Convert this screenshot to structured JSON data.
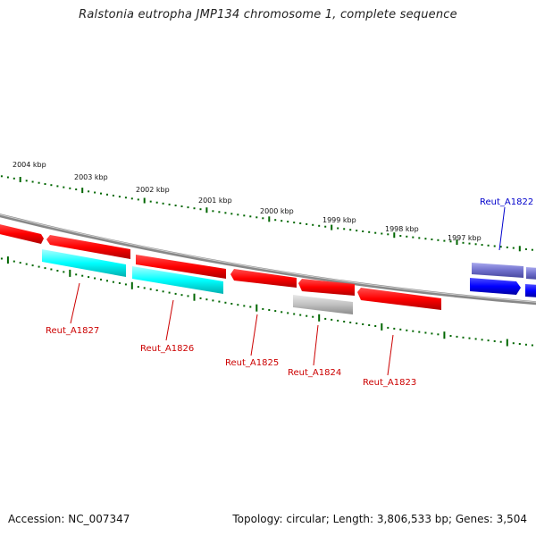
{
  "title": "Ralstonia eutropha JMP134 chromosome 1, complete sequence",
  "footer": {
    "accession": "Accession: NC_007347",
    "summary": "Topology: circular; Length: 3,806,533 bp; Genes: 3,504"
  },
  "ticks": [
    {
      "label": "2004 kbp"
    },
    {
      "label": "2003 kbp"
    },
    {
      "label": "2002 kbp"
    },
    {
      "label": "2001 kbp"
    },
    {
      "label": "2000 kbp"
    },
    {
      "label": "1999 kbp"
    },
    {
      "label": "1998 kbp"
    },
    {
      "label": "1997 kbp"
    }
  ],
  "genes": [
    {
      "name": "Reut_A1827",
      "color": "#00ffff",
      "strand": "inner"
    },
    {
      "name": "Reut_A1826",
      "color": "#00ffff",
      "strand": "inner"
    },
    {
      "name": "Reut_A1825",
      "color": "#ff0000",
      "strand": "outer"
    },
    {
      "name": "Reut_A1824",
      "color": "#c0c0c0",
      "strand": "inner"
    },
    {
      "name": "Reut_A1823",
      "color": "#ff0000",
      "strand": "outer"
    },
    {
      "name": "Reut_A1822",
      "color": "#0000ff",
      "strand": "inner"
    }
  ],
  "colors": {
    "gene_label": "#cc0000",
    "gene_label_alt": "#0000cc",
    "tick": "#006600",
    "backbone": "#888888"
  }
}
